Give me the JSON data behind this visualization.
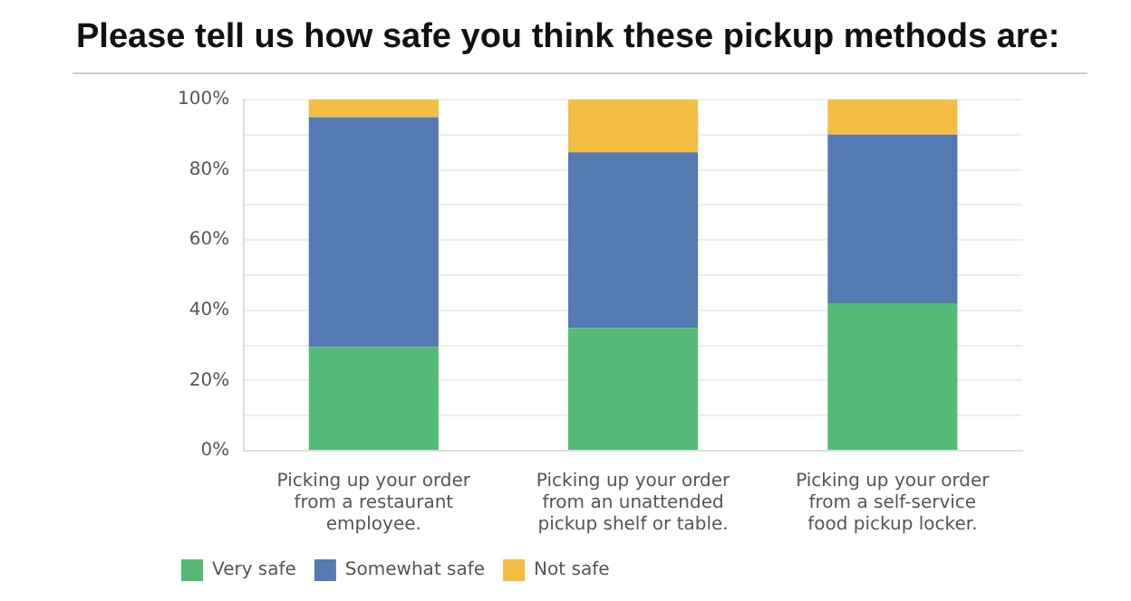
{
  "chart_data": {
    "type": "bar",
    "title": "Please tell us how safe you think these pickup methods are:",
    "categories": [
      "Picking up your order from a restaurant employee.",
      "Picking up your order from an unattended pickup shelf or table.",
      "Picking up your order from a self-service food pickup locker."
    ],
    "stacked": true,
    "series": [
      {
        "name": "Very safe",
        "color": "#55bb76",
        "values": [
          29.5,
          35,
          42
        ]
      },
      {
        "name": "Somewhat safe",
        "color": "#5579b1",
        "values": [
          65.5,
          50,
          48
        ]
      },
      {
        "name": "Not safe",
        "color": "#f1be43",
        "values": [
          5,
          15,
          10
        ]
      }
    ],
    "ylim": [
      0,
      100
    ],
    "yticks": [
      {
        "value": 0,
        "label": "0%"
      },
      {
        "value": 10,
        "label": null
      },
      {
        "value": 20,
        "label": "20%"
      },
      {
        "value": 30,
        "label": null
      },
      {
        "value": 40,
        "label": "40%"
      },
      {
        "value": 50,
        "label": null
      },
      {
        "value": 60,
        "label": "60%"
      },
      {
        "value": 70,
        "label": null
      },
      {
        "value": 80,
        "label": "80%"
      },
      {
        "value": 90,
        "label": null
      },
      {
        "value": 100,
        "label": "100%"
      }
    ],
    "grid": "y",
    "legend": "bottom left"
  }
}
